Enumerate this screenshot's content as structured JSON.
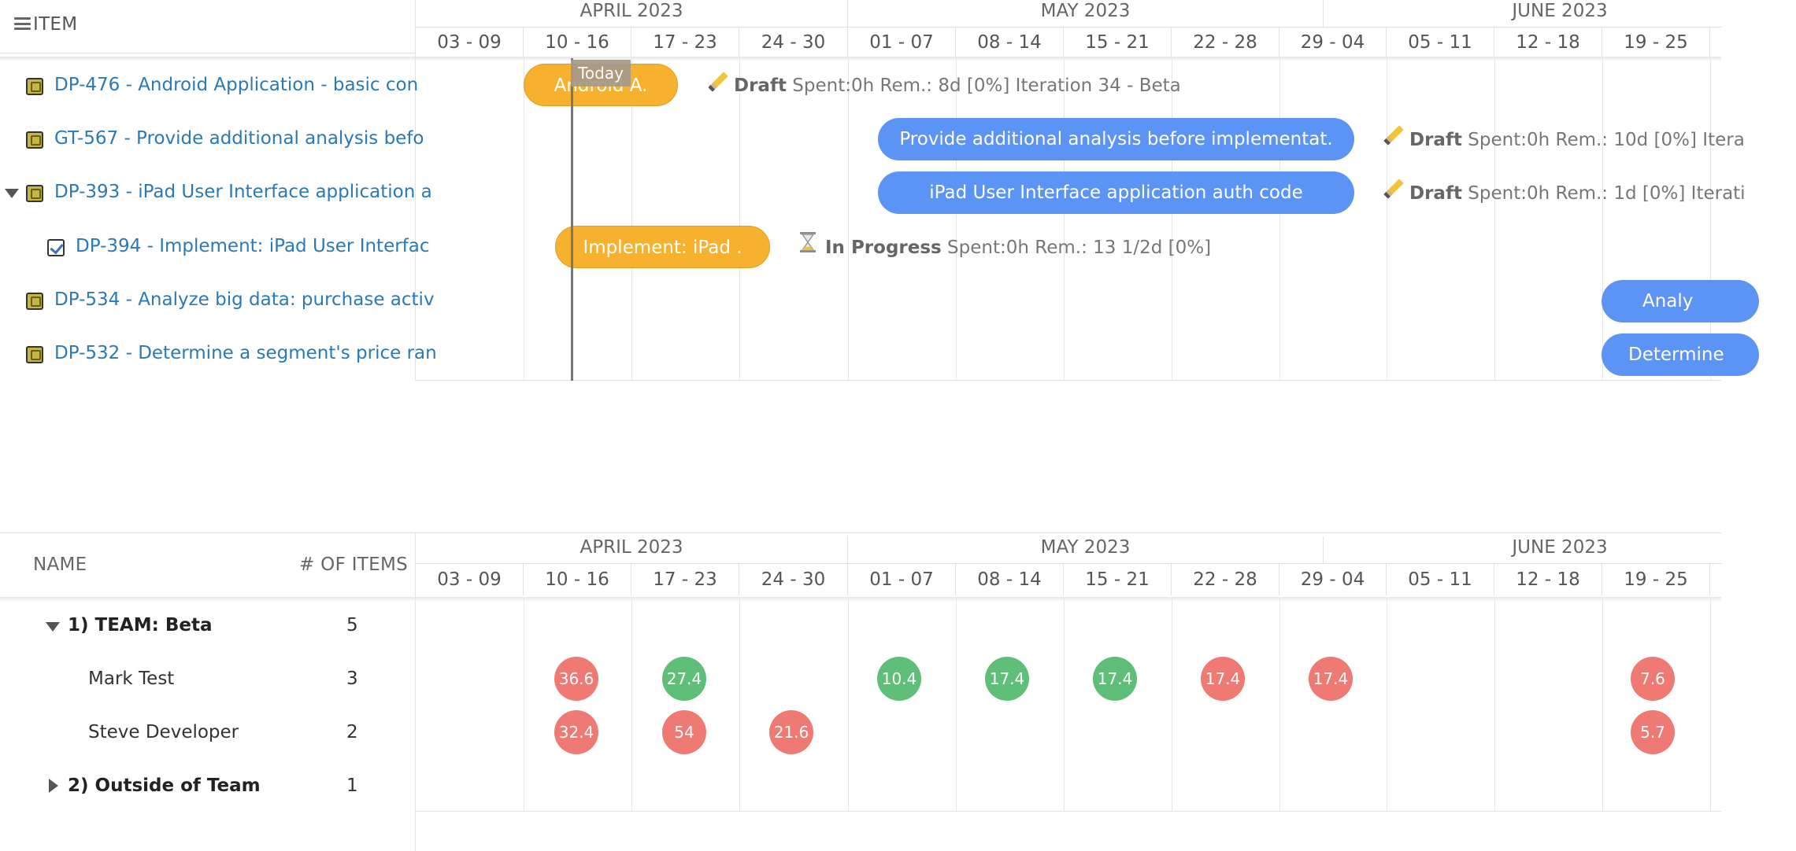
{
  "top": {
    "header_label": "ITEM",
    "months": [
      {
        "name": "APRIL 2023"
      },
      {
        "name": "MAY 2023"
      },
      {
        "name": "JUNE 2023"
      }
    ],
    "weeks": [
      "03 - 09",
      "10 - 16",
      "17 - 23",
      "24 - 30",
      "01 - 07",
      "08 - 14",
      "15 - 21",
      "22 - 28",
      "29 - 04",
      "05 - 11",
      "12 - 18",
      "19 - 25"
    ],
    "today_label": "Today",
    "tasks": [
      {
        "text": "DP-476 - Android Application - basic con",
        "bar": "Android A.",
        "status": "Draft",
        "detail": "Spent:0h Rem.: 8d [0%] Iteration 34 - Beta"
      },
      {
        "text": "GT-567 - Provide additional analysis befo",
        "bar": "Provide additional analysis before implementat.",
        "status": "Draft",
        "detail": "Spent:0h Rem.: 10d [0%] Itera"
      },
      {
        "text": "DP-393 - iPad User Interface application a",
        "bar": "iPad User Interface application auth code",
        "status": "Draft",
        "detail": "Spent:0h Rem.: 1d [0%] Iterati"
      },
      {
        "text": "DP-394 - Implement: iPad User Interfac",
        "bar": "Implement: iPad .",
        "status": "In Progress",
        "detail": "Spent:0h Rem.: 13 1/2d [0%]"
      },
      {
        "text": "DP-534 - Analyze big data: purchase activ",
        "bar": "Analy"
      },
      {
        "text": "DP-532 - Determine a segment's price ran",
        "bar": "Determine"
      }
    ]
  },
  "bottom": {
    "col_name": "NAME",
    "col_items": "# OF ITEMS",
    "rows": [
      {
        "name": "1) TEAM: Beta",
        "count": "5"
      },
      {
        "name": "Mark Test",
        "count": "3",
        "bubbles": [
          "36.6",
          "27.4",
          "10.4",
          "17.4",
          "17.4",
          "17.4",
          "17.4",
          "7.6"
        ]
      },
      {
        "name": "Steve Developer",
        "count": "2",
        "bubbles": [
          "32.4",
          "54",
          "21.6",
          "5.7"
        ]
      },
      {
        "name": "2) Outside of Team",
        "count": "1"
      }
    ]
  },
  "colors": {
    "over": "#ee7a73",
    "ok": "#5fbf79",
    "bar_orange": "#f6b12e",
    "bar_blue": "#5c94f5",
    "link": "#2a79b8"
  }
}
